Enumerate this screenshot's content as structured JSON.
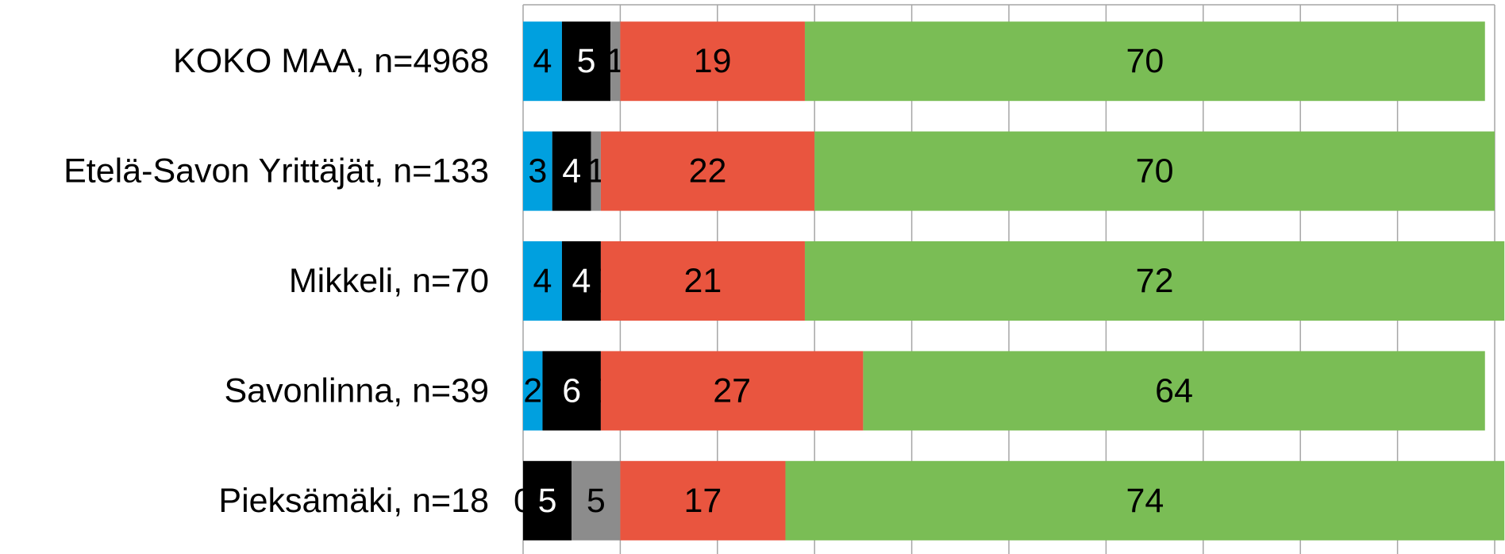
{
  "chart_data": {
    "type": "stacked-bar-horizontal",
    "categories": [
      "KOKO MAA, n=4968",
      "Etelä-Savon Yrittäjät, n=133",
      "Mikkeli, n=70",
      "Savonlinna, n=39",
      "Pieksämäki, n=18"
    ],
    "series": [
      {
        "color": "#00a0df",
        "values": [
          4,
          3,
          4,
          2,
          0
        ]
      },
      {
        "color": "#000000",
        "values": [
          5,
          4,
          4,
          6,
          5
        ]
      },
      {
        "color": "#8c8c8c",
        "values": [
          1,
          1,
          0,
          0,
          5
        ]
      },
      {
        "color": "#e9553f",
        "values": [
          19,
          22,
          21,
          27,
          17
        ]
      },
      {
        "color": "#7abd55",
        "values": [
          70,
          70,
          72,
          64,
          74
        ]
      }
    ],
    "xlim": [
      0,
      100
    ],
    "xticks": [
      0,
      10,
      20,
      30,
      40,
      50,
      60,
      70,
      80,
      90,
      100
    ],
    "grid": true
  }
}
